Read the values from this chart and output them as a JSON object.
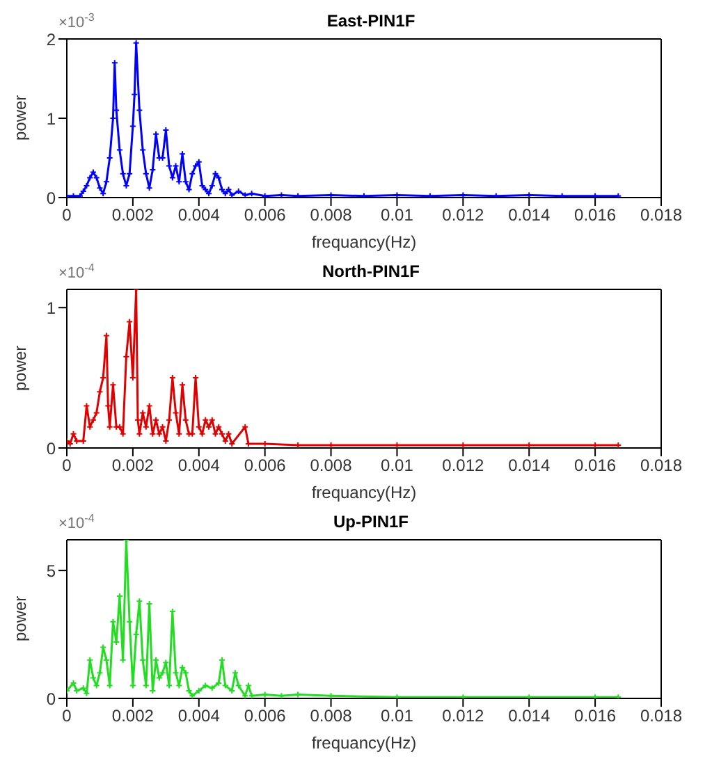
{
  "chart_data": [
    {
      "type": "line",
      "title": "East-PIN1F",
      "xlabel": "frequancy(Hz)",
      "ylabel": "power",
      "color": "#0000ff",
      "marker": "cross",
      "annotations": [
        "×10$^{-3}$"
      ],
      "x": [
        0,
        0.0002,
        0.0004,
        0.0005,
        0.0006,
        0.0007,
        0.0008,
        0.0009,
        0.001,
        0.0011,
        0.0012,
        0.0013,
        0.0014,
        0.00145,
        0.0015,
        0.0016,
        0.0017,
        0.0018,
        0.0019,
        0.002,
        0.00205,
        0.0021,
        0.0022,
        0.0023,
        0.0024,
        0.0025,
        0.0026,
        0.0027,
        0.0028,
        0.0029,
        0.003,
        0.0031,
        0.0032,
        0.0033,
        0.0034,
        0.0035,
        0.0036,
        0.0037,
        0.0038,
        0.0039,
        0.004,
        0.0041,
        0.0042,
        0.0043,
        0.0044,
        0.0045,
        0.0046,
        0.0047,
        0.0048,
        0.0049,
        0.005,
        0.0052,
        0.0054,
        0.0056,
        0.006,
        0.0065,
        0.007,
        0.008,
        0.009,
        0.01,
        0.011,
        0.012,
        0.013,
        0.014,
        0.015,
        0.016,
        0.0167
      ],
      "values": [
        0.02,
        0.02,
        0.02,
        0.08,
        0.15,
        0.25,
        0.32,
        0.25,
        0.12,
        0.05,
        0.2,
        0.5,
        1,
        1.7,
        1.1,
        0.6,
        0.3,
        0.15,
        0.3,
        0.9,
        1.3,
        1.95,
        1.1,
        0.6,
        0.3,
        0.12,
        0.35,
        0.8,
        0.5,
        0.5,
        0.85,
        0.4,
        0.25,
        0.4,
        0.2,
        0.55,
        0.2,
        0.1,
        0.3,
        0.4,
        0.45,
        0.15,
        0.1,
        0.05,
        0.15,
        0.3,
        0.25,
        0.1,
        0.05,
        0.1,
        0.03,
        0.08,
        0.03,
        0.05,
        0.02,
        0.03,
        0.02,
        0.03,
        0.02,
        0.03,
        0.02,
        0.03,
        0.02,
        0.03,
        0.02,
        0.02,
        0.02
      ],
      "xlim": [
        0,
        0.018
      ],
      "xticks": [
        0,
        0.002,
        0.004,
        0.006,
        0.008,
        0.01,
        0.012,
        0.014,
        0.016,
        0.018
      ],
      "ylim": [
        0,
        2
      ],
      "yticks": [
        0,
        1,
        2
      ]
    },
    {
      "type": "line",
      "title": "North-PIN1F",
      "xlabel": "frequancy(Hz)",
      "ylabel": "power",
      "color": "#e00000",
      "marker": "cross",
      "annotations": [
        "×10$^{-4}$"
      ],
      "x": [
        0,
        0.0001,
        0.0002,
        0.0003,
        0.0005,
        0.0006,
        0.0007,
        0.0008,
        0.0009,
        0.001,
        0.0011,
        0.0012,
        0.00125,
        0.0013,
        0.0014,
        0.0015,
        0.0016,
        0.0017,
        0.0018,
        0.0019,
        0.002,
        0.0021,
        0.00215,
        0.0022,
        0.0023,
        0.0024,
        0.0025,
        0.0026,
        0.0027,
        0.0028,
        0.0029,
        0.003,
        0.0031,
        0.0032,
        0.0033,
        0.0034,
        0.0035,
        0.0036,
        0.0037,
        0.0038,
        0.0039,
        0.004,
        0.0041,
        0.0042,
        0.0043,
        0.0044,
        0.0045,
        0.0046,
        0.0047,
        0.0048,
        0.0049,
        0.005,
        0.0054,
        0.0055,
        0.006,
        0.007,
        0.008,
        0.01,
        0.012,
        0.014,
        0.016,
        0.0167
      ],
      "values": [
        0.05,
        0.03,
        0.1,
        0.05,
        0.05,
        0.3,
        0.15,
        0.2,
        0.25,
        0.4,
        0.5,
        0.8,
        0.3,
        0.15,
        0.45,
        0.15,
        0.15,
        0.1,
        0.65,
        0.9,
        0.5,
        1.13,
        0.2,
        0.1,
        0.25,
        0.15,
        0.3,
        0.1,
        0.2,
        0.1,
        0.15,
        0.05,
        0.2,
        0.5,
        0.25,
        0.1,
        0.45,
        0.2,
        0.1,
        0.1,
        0.5,
        0.15,
        0.1,
        0.2,
        0.15,
        0.2,
        0.1,
        0.15,
        0.1,
        0.05,
        0.1,
        0.03,
        0.15,
        0.03,
        0.03,
        0.02,
        0.02,
        0.02,
        0.02,
        0.02,
        0.02,
        0.02
      ],
      "xlim": [
        0,
        0.018
      ],
      "xticks": [
        0,
        0.002,
        0.004,
        0.006,
        0.008,
        0.01,
        0.012,
        0.014,
        0.016,
        0.018
      ],
      "ylim": [
        0,
        1.13
      ],
      "yticks": [
        0,
        1
      ]
    },
    {
      "type": "line",
      "title": "Up-PIN1F",
      "xlabel": "frequancy(Hz)",
      "ylabel": "power",
      "color": "#22dd22",
      "marker": "cross",
      "annotations": [
        "×10$^{-4}$"
      ],
      "x": [
        0,
        0.0002,
        0.0003,
        0.0005,
        0.0006,
        0.0007,
        0.0008,
        0.0009,
        0.001,
        0.0011,
        0.0012,
        0.0013,
        0.0014,
        0.0015,
        0.0016,
        0.0017,
        0.0018,
        0.0019,
        0.002,
        0.0021,
        0.0022,
        0.0023,
        0.0024,
        0.0025,
        0.0026,
        0.0027,
        0.0028,
        0.0029,
        0.003,
        0.0031,
        0.0032,
        0.0033,
        0.0034,
        0.0035,
        0.0036,
        0.0037,
        0.0038,
        0.004,
        0.0042,
        0.0044,
        0.0046,
        0.0047,
        0.0048,
        0.005,
        0.0051,
        0.0052,
        0.0054,
        0.0055,
        0.0056,
        0.006,
        0.0065,
        0.007,
        0.008,
        0.01,
        0.012,
        0.014,
        0.016,
        0.0167
      ],
      "values": [
        0.3,
        0.6,
        0.3,
        0.4,
        0.2,
        1.5,
        0.8,
        0.5,
        1,
        2,
        1.5,
        0.5,
        3,
        2.2,
        4,
        1.5,
        6.2,
        3,
        0.5,
        2.5,
        3.8,
        1.5,
        0.5,
        3.7,
        0.3,
        1.5,
        0.8,
        1,
        1.4,
        0.5,
        3.4,
        1,
        0.5,
        1.2,
        1,
        0.3,
        0.1,
        0.3,
        0.5,
        0.4,
        0.6,
        1.5,
        0.5,
        0.3,
        1,
        0.5,
        0.1,
        0.5,
        0.1,
        0.15,
        0.1,
        0.15,
        0.1,
        0.05,
        0.05,
        0.05,
        0.05,
        0.05
      ],
      "xlim": [
        0,
        0.018
      ],
      "xticks": [
        0,
        0.002,
        0.004,
        0.006,
        0.008,
        0.01,
        0.012,
        0.014,
        0.016,
        0.018
      ],
      "ylim": [
        0,
        6.2
      ],
      "yticks": [
        0,
        5
      ]
    }
  ]
}
